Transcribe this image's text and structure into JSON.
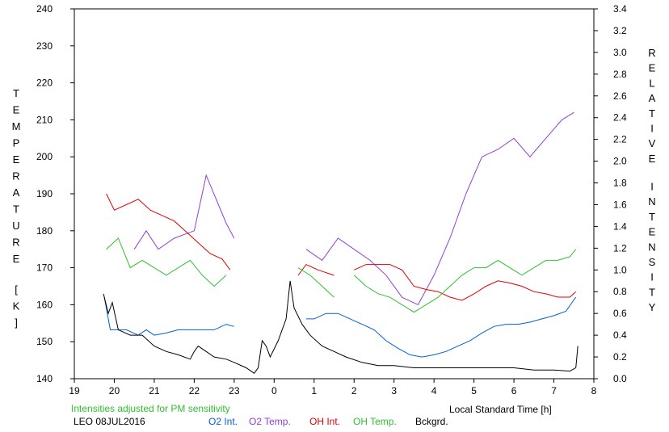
{
  "chart_data": {
    "type": "line",
    "left_axis_label": "TEMPERATURE [K]",
    "right_axis_label": "RELATIVE INTENSITY",
    "xlabel": "Local Standard Time [h]",
    "note": "Intensities adjusted for PM sensitivity",
    "station_date": "LEO 08JUL2016",
    "ylim_left": [
      140,
      240
    ],
    "ylim_right": [
      0.0,
      3.4
    ],
    "xlim": [
      19,
      32
    ],
    "x_tick_labels": [
      "19",
      "20",
      "21",
      "22",
      "23",
      "0",
      "1",
      "2",
      "3",
      "4",
      "5",
      "6",
      "7",
      "8"
    ],
    "left_tick_labels": [
      "140",
      "150",
      "160",
      "170",
      "180",
      "190",
      "200",
      "210",
      "220",
      "230",
      "240"
    ],
    "right_tick_labels": [
      "0.0",
      "0.2",
      "0.4",
      "0.6",
      "0.8",
      "1.0",
      "1.2",
      "1.4",
      "1.6",
      "1.8",
      "2.0",
      "2.2",
      "2.4",
      "2.6",
      "2.8",
      "3.0",
      "3.2",
      "3.4"
    ],
    "series": [
      {
        "name": "O2 Int.",
        "color": "#0060d0",
        "axis": "right",
        "points": [
          [
            19.75,
            0.75
          ],
          [
            19.9,
            0.45
          ],
          [
            20.1,
            0.45
          ],
          [
            20.3,
            0.45
          ],
          [
            20.6,
            0.4
          ],
          [
            20.8,
            0.45
          ],
          [
            21.0,
            0.4
          ],
          [
            21.3,
            0.42
          ],
          [
            21.6,
            0.45
          ],
          [
            21.9,
            0.45
          ],
          [
            22.2,
            0.45
          ],
          [
            22.5,
            0.45
          ],
          [
            22.8,
            0.5
          ],
          [
            23.0,
            0.48
          ],
          null,
          [
            24.8,
            0.55
          ],
          [
            25.0,
            0.55
          ],
          [
            25.3,
            0.6
          ],
          [
            25.6,
            0.6
          ],
          [
            25.9,
            0.55
          ],
          [
            26.2,
            0.5
          ],
          [
            26.5,
            0.45
          ],
          [
            26.8,
            0.35
          ],
          [
            27.1,
            0.28
          ],
          [
            27.4,
            0.22
          ],
          [
            27.7,
            0.2
          ],
          [
            28.0,
            0.22
          ],
          [
            28.3,
            0.25
          ],
          [
            28.6,
            0.3
          ],
          [
            28.9,
            0.35
          ],
          [
            29.2,
            0.42
          ],
          [
            29.5,
            0.48
          ],
          [
            29.8,
            0.5
          ],
          [
            30.1,
            0.5
          ],
          [
            30.4,
            0.52
          ],
          [
            30.7,
            0.55
          ],
          [
            31.0,
            0.58
          ],
          [
            31.3,
            0.62
          ],
          [
            31.55,
            0.75
          ]
        ]
      },
      {
        "name": "O2 Temp.",
        "color": "#9040d0",
        "axis": "left",
        "points": [
          [
            20.5,
            175
          ],
          [
            20.8,
            180
          ],
          [
            21.1,
            175
          ],
          [
            21.5,
            178
          ],
          [
            22.0,
            180
          ],
          [
            22.3,
            195
          ],
          [
            22.8,
            182
          ],
          [
            23.0,
            178
          ],
          null,
          [
            24.8,
            175
          ],
          [
            25.2,
            172
          ],
          [
            25.6,
            178
          ],
          [
            26.0,
            175
          ],
          [
            26.4,
            172
          ],
          [
            26.8,
            168
          ],
          [
            27.2,
            162
          ],
          [
            27.6,
            160
          ],
          [
            28.0,
            168
          ],
          [
            28.4,
            178
          ],
          [
            28.8,
            190
          ],
          [
            29.2,
            200
          ],
          [
            29.6,
            202
          ],
          [
            30.0,
            205
          ],
          [
            30.4,
            200
          ],
          [
            30.8,
            205
          ],
          [
            31.2,
            210
          ],
          [
            31.5,
            212
          ]
        ]
      },
      {
        "name": "OH Int.",
        "color": "#e00000",
        "axis": "right",
        "points": [
          [
            19.8,
            1.7
          ],
          [
            20.0,
            1.55
          ],
          [
            20.3,
            1.6
          ],
          [
            20.6,
            1.65
          ],
          [
            20.9,
            1.55
          ],
          [
            21.2,
            1.5
          ],
          [
            21.5,
            1.45
          ],
          [
            21.8,
            1.35
          ],
          [
            22.1,
            1.25
          ],
          [
            22.4,
            1.15
          ],
          [
            22.7,
            1.1
          ],
          [
            22.9,
            1.0
          ],
          null,
          [
            24.6,
            0.95
          ],
          [
            24.8,
            1.05
          ],
          [
            25.1,
            1.0
          ],
          [
            25.5,
            0.95
          ],
          null,
          [
            26.0,
            1.0
          ],
          [
            26.3,
            1.05
          ],
          [
            26.6,
            1.05
          ],
          [
            26.9,
            1.05
          ],
          [
            27.2,
            1.0
          ],
          [
            27.5,
            0.85
          ],
          [
            27.8,
            0.82
          ],
          [
            28.1,
            0.8
          ],
          [
            28.4,
            0.75
          ],
          [
            28.7,
            0.72
          ],
          [
            29.0,
            0.78
          ],
          [
            29.3,
            0.85
          ],
          [
            29.6,
            0.9
          ],
          [
            29.9,
            0.88
          ],
          [
            30.2,
            0.85
          ],
          [
            30.5,
            0.8
          ],
          [
            30.8,
            0.78
          ],
          [
            31.1,
            0.75
          ],
          [
            31.4,
            0.75
          ],
          [
            31.55,
            0.8
          ]
        ]
      },
      {
        "name": "OH Temp.",
        "color": "#30c030",
        "axis": "left",
        "points": [
          [
            19.8,
            175
          ],
          [
            20.1,
            178
          ],
          [
            20.4,
            170
          ],
          [
            20.7,
            172
          ],
          [
            21.0,
            170
          ],
          [
            21.3,
            168
          ],
          [
            21.6,
            170
          ],
          [
            21.9,
            172
          ],
          [
            22.2,
            168
          ],
          [
            22.5,
            165
          ],
          [
            22.8,
            168
          ],
          null,
          [
            24.6,
            170
          ],
          [
            24.9,
            168
          ],
          [
            25.2,
            165
          ],
          [
            25.5,
            162
          ],
          null,
          [
            26.0,
            168
          ],
          [
            26.3,
            165
          ],
          [
            26.6,
            163
          ],
          [
            26.9,
            162
          ],
          [
            27.2,
            160
          ],
          [
            27.5,
            158
          ],
          [
            27.8,
            160
          ],
          [
            28.1,
            162
          ],
          [
            28.4,
            165
          ],
          [
            28.7,
            168
          ],
          [
            29.0,
            170
          ],
          [
            29.3,
            170
          ],
          [
            29.6,
            172
          ],
          [
            29.9,
            170
          ],
          [
            30.2,
            168
          ],
          [
            30.5,
            170
          ],
          [
            30.8,
            172
          ],
          [
            31.1,
            172
          ],
          [
            31.4,
            173
          ],
          [
            31.55,
            175
          ]
        ]
      },
      {
        "name": "Bckgrd.",
        "color": "#000000",
        "axis": "right",
        "points": [
          [
            19.73,
            0.78
          ],
          [
            19.85,
            0.6
          ],
          [
            19.95,
            0.7
          ],
          [
            20.1,
            0.45
          ],
          [
            20.4,
            0.4
          ],
          [
            20.7,
            0.4
          ],
          [
            21.0,
            0.3
          ],
          [
            21.3,
            0.25
          ],
          [
            21.6,
            0.22
          ],
          [
            21.9,
            0.18
          ],
          [
            22.0,
            0.25
          ],
          [
            22.1,
            0.3
          ],
          [
            22.3,
            0.25
          ],
          [
            22.5,
            0.2
          ],
          [
            22.8,
            0.18
          ],
          [
            23.0,
            0.15
          ],
          [
            23.3,
            0.1
          ],
          [
            23.5,
            0.05
          ],
          [
            23.6,
            0.1
          ],
          [
            23.7,
            0.35
          ],
          [
            23.8,
            0.3
          ],
          [
            23.9,
            0.2
          ],
          [
            24.1,
            0.35
          ],
          [
            24.3,
            0.55
          ],
          [
            24.4,
            0.9
          ],
          [
            24.5,
            0.65
          ],
          [
            24.7,
            0.5
          ],
          [
            24.9,
            0.4
          ],
          [
            25.2,
            0.3
          ],
          [
            25.5,
            0.25
          ],
          [
            25.8,
            0.2
          ],
          [
            26.2,
            0.15
          ],
          [
            26.6,
            0.12
          ],
          [
            27.0,
            0.12
          ],
          [
            27.5,
            0.1
          ],
          [
            28.0,
            0.1
          ],
          [
            28.5,
            0.1
          ],
          [
            29.0,
            0.1
          ],
          [
            29.5,
            0.1
          ],
          [
            30.0,
            0.1
          ],
          [
            30.5,
            0.08
          ],
          [
            31.0,
            0.08
          ],
          [
            31.4,
            0.07
          ],
          [
            31.55,
            0.1
          ],
          [
            31.6,
            0.3
          ]
        ]
      }
    ],
    "grid": false,
    "legend_position": "bottom"
  }
}
